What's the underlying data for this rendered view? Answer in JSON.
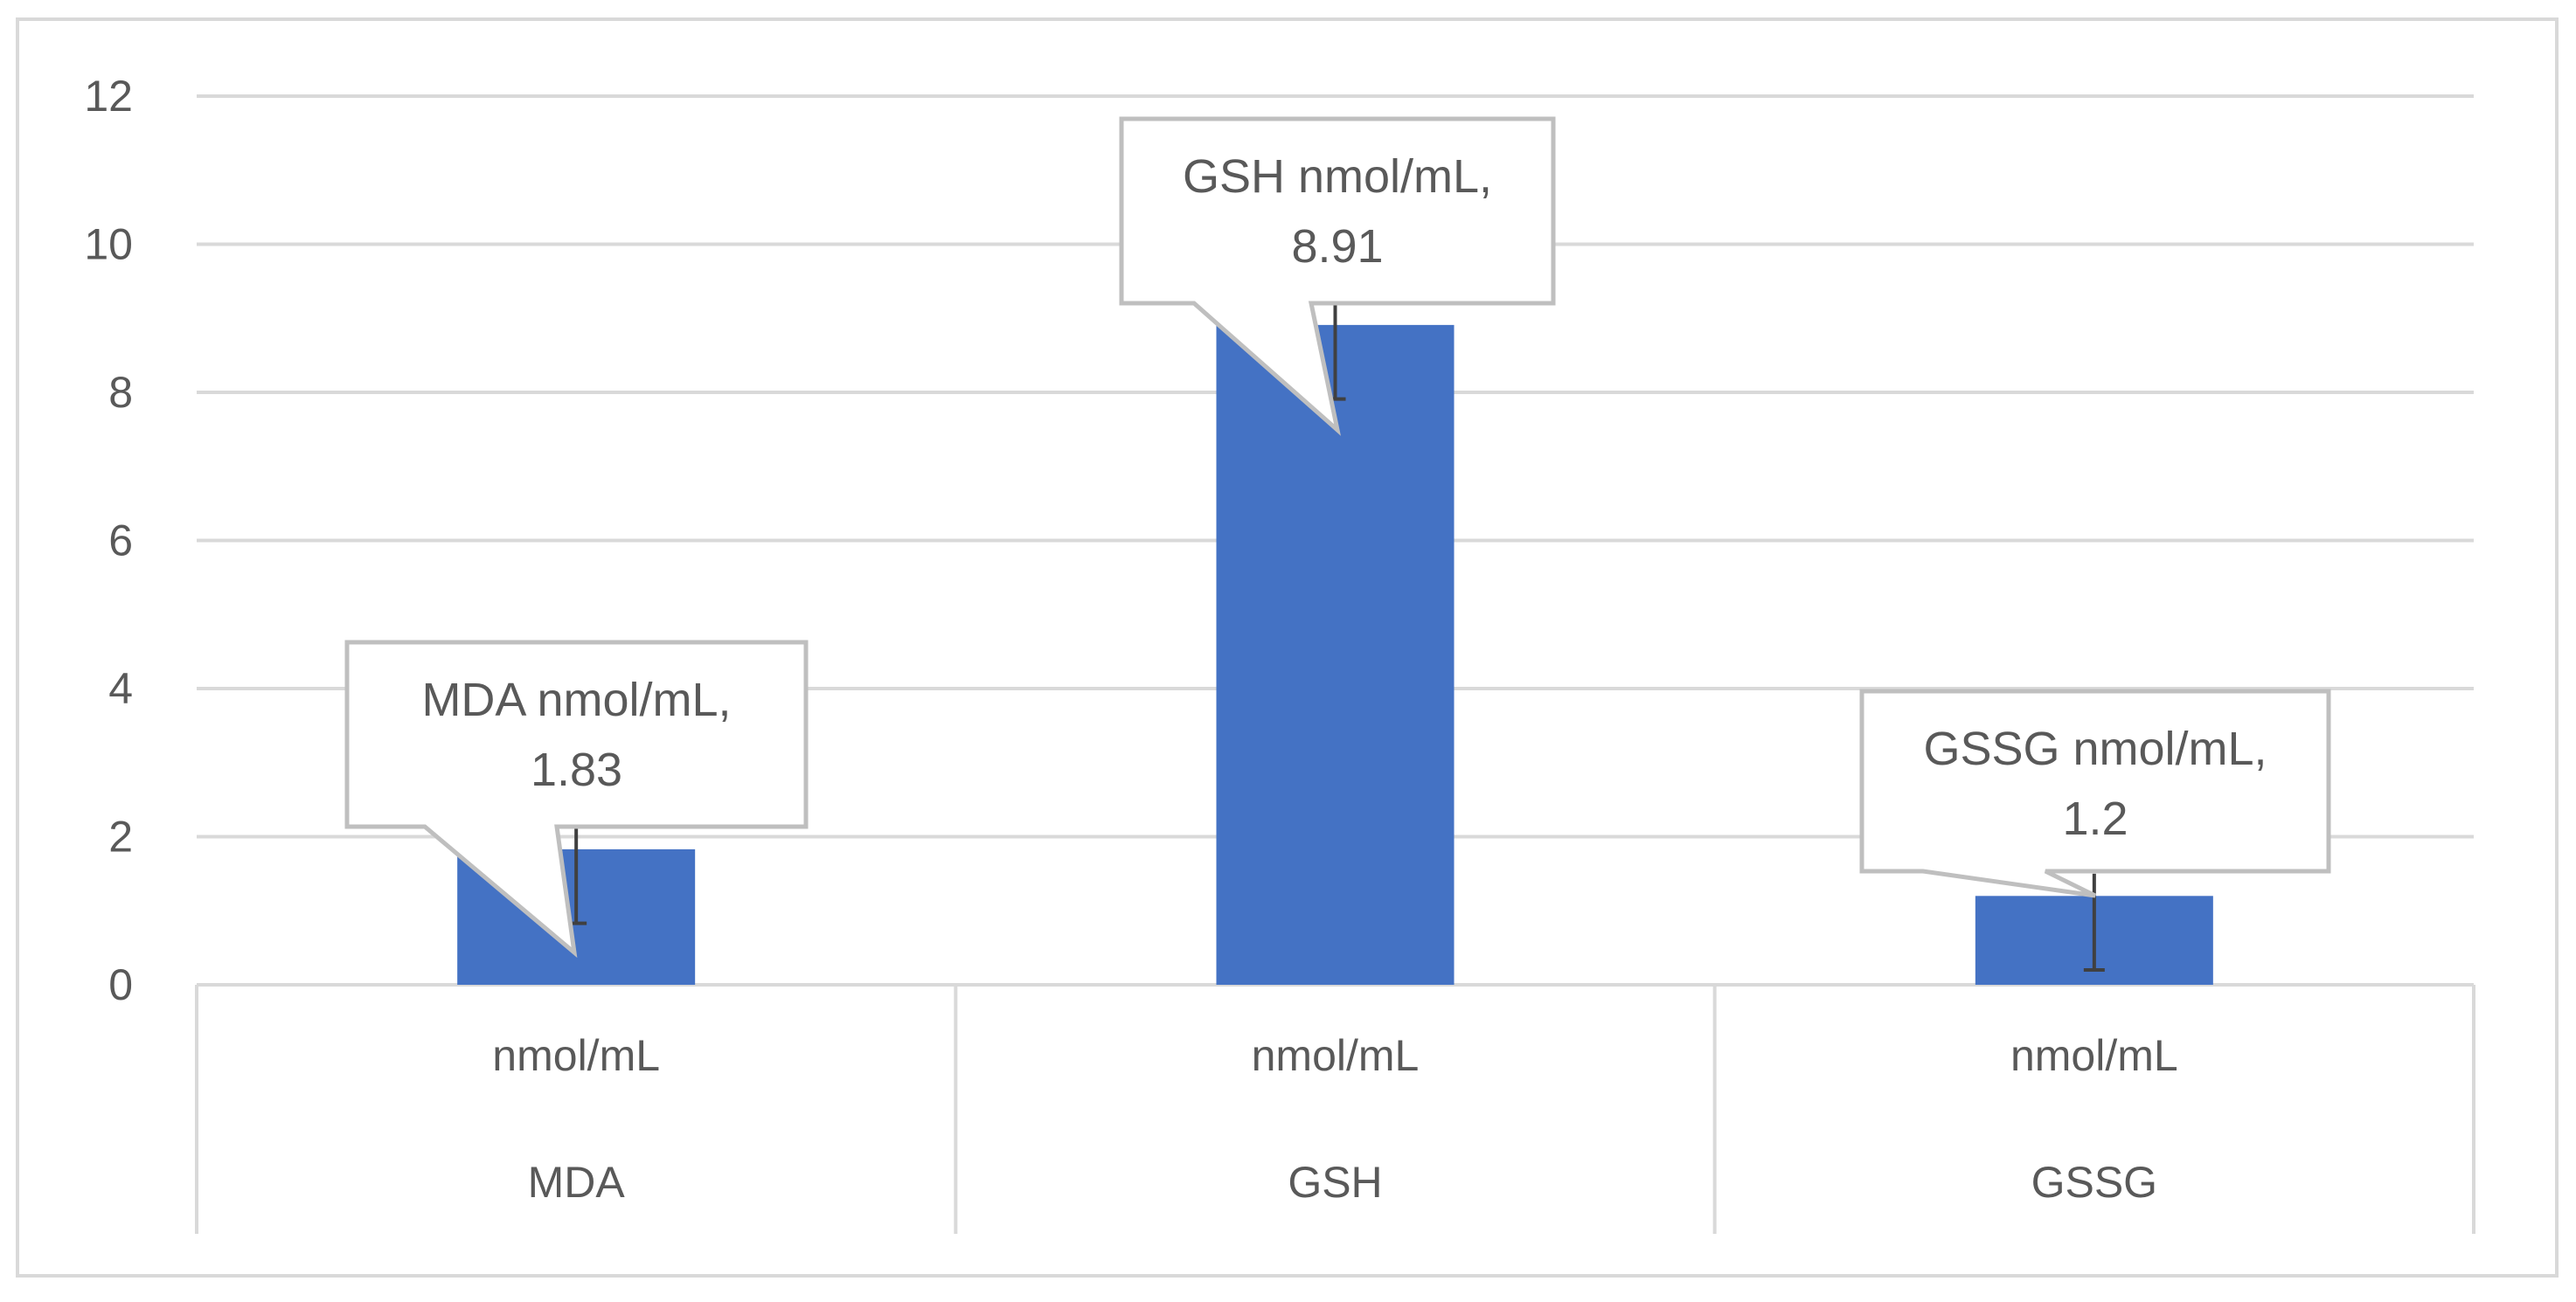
{
  "colors": {
    "bar": "#4472C4",
    "grid": "#D9D9D9",
    "axis_text": "#595959",
    "callout_border": "#BFBFBF",
    "frame": "#D9D9D9"
  },
  "chart_data": {
    "type": "bar",
    "title": "",
    "xlabel": "",
    "ylabel": "",
    "ylim": [
      0,
      12
    ],
    "y_ticks": [
      0,
      2,
      4,
      6,
      8,
      10,
      12
    ],
    "grid": true,
    "categories": [
      {
        "unit": "nmol/mL",
        "name": "MDA"
      },
      {
        "unit": "nmol/mL",
        "name": "GSH"
      },
      {
        "unit": "nmol/mL",
        "name": "GSSG"
      }
    ],
    "values": [
      1.83,
      8.91,
      1.2
    ],
    "error_low": [
      0.83,
      7.91,
      0.2
    ],
    "error_high": [
      2.11,
      9.61,
      1.5
    ],
    "data_labels": [
      {
        "line1": "MDA nmol/mL,",
        "line2": "1.83"
      },
      {
        "line1": "GSH nmol/mL,",
        "line2": "8.91"
      },
      {
        "line1": "GSSG nmol/mL,",
        "line2": "1.2"
      }
    ]
  }
}
